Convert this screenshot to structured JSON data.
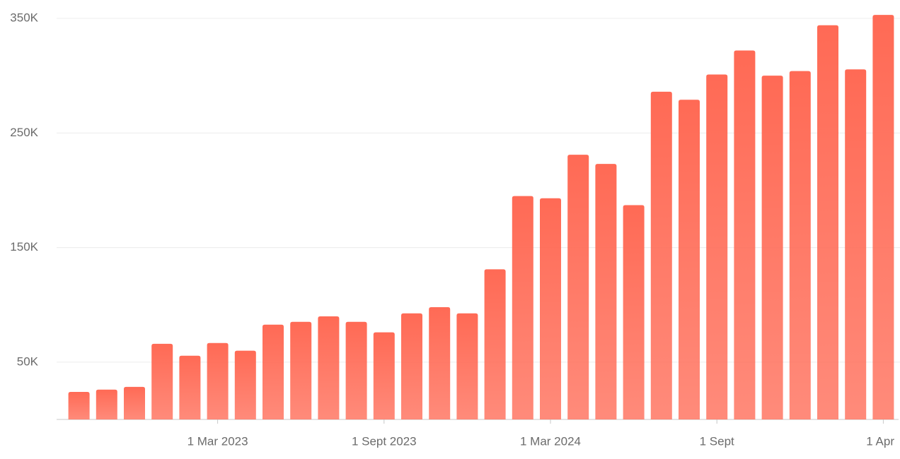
{
  "chart_data": {
    "type": "bar",
    "categories": [
      null,
      null,
      null,
      null,
      null,
      "1 Mar 2023",
      null,
      null,
      null,
      null,
      null,
      "1 Sept 2023",
      null,
      null,
      null,
      null,
      null,
      "1 Mar 2024",
      null,
      null,
      null,
      null,
      null,
      "1 Sept",
      null,
      null,
      null,
      null,
      null,
      "1 Apr"
    ],
    "values": [
      24000,
      26000,
      28400,
      66000,
      55600,
      66700,
      60000,
      82700,
      85200,
      90000,
      85200,
      76000,
      92600,
      98000,
      92600,
      131000,
      195000,
      193000,
      231000,
      223000,
      187000,
      286000,
      279000,
      301000,
      322000,
      300000,
      304000,
      344000,
      305500,
      353000
    ],
    "color": "#ff6a55",
    "ylim": [
      0,
      365000
    ],
    "yticks": [
      {
        "value": 50000,
        "label": "50K"
      },
      {
        "value": 150000,
        "label": "150K"
      },
      {
        "value": 250000,
        "label": "250K"
      },
      {
        "value": 350000,
        "label": "350K"
      }
    ],
    "grid": true
  }
}
